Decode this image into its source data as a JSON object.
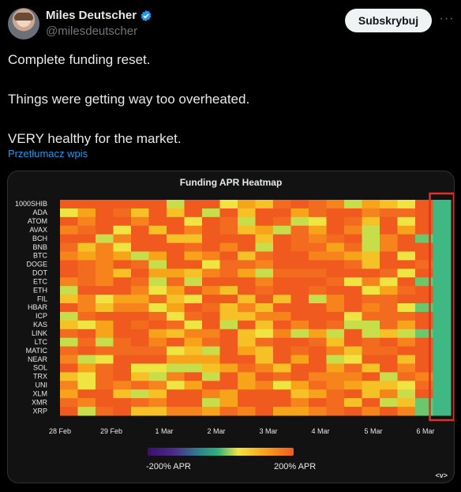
{
  "author": {
    "name": "Miles Deutscher",
    "handle": "@milesdeutscher",
    "verified": true,
    "avatar_icon": "avatar-photo"
  },
  "actions": {
    "subscribe_label": "Subskrybuj",
    "more_icon": "more-horizontal-icon"
  },
  "tweet": {
    "lines": [
      "Complete funding reset.",
      "Things were getting way too overheated.",
      "VERY healthy for the market."
    ],
    "translate_label": "Przetłumacz wpis"
  },
  "chart_data": {
    "type": "heatmap",
    "title": "Funding APR Heatmap",
    "rows": [
      "1000SHIB",
      "ADA",
      "ATOM",
      "AVAX",
      "BCH",
      "BNB",
      "BTC",
      "DOGE",
      "DOT",
      "ETC",
      "ETH",
      "FIL",
      "HBAR",
      "ICP",
      "KAS",
      "LINK",
      "LTC",
      "MATIC",
      "NEAR",
      "SOL",
      "TRX",
      "UNI",
      "XLM",
      "XMR",
      "XRP"
    ],
    "x_tick_labels": [
      "28 Feb",
      "29 Feb",
      "1 Mar",
      "2 Mar",
      "3 Mar",
      "4 Mar",
      "5 Mar",
      "6 Mar"
    ],
    "legend": {
      "min_label": "-200% APR",
      "max_label": "200% APR"
    },
    "highlight_last_column": true,
    "colors": {
      "low": "#3b0f70",
      "mid": "#f0e442",
      "high": "#f05a1f",
      "highlight": "#e0302a"
    }
  },
  "card_footer": {
    "embed_label": "<v>"
  }
}
